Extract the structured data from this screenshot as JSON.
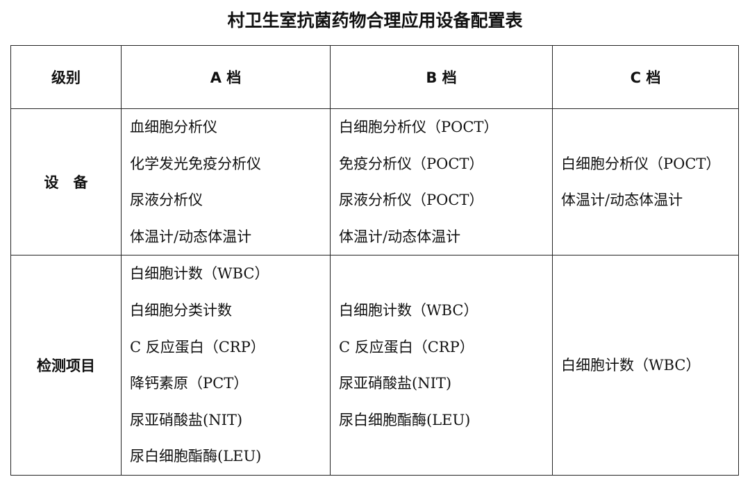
{
  "title": "村卫生室抗菌药物合理应用设备配置表",
  "headers": [
    "级别",
    "A 档",
    "B 档",
    "C 档"
  ],
  "rows": [
    {
      "label": "设　备",
      "a": [
        "血细胞分析仪",
        "化学发光免疫分析仪",
        "尿液分析仪",
        "体温计/动态体温计"
      ],
      "b": [
        "白细胞分析仪（POCT）",
        "免疫分析仪（POCT）",
        "尿液分析仪（POCT）",
        "体温计/动态体温计"
      ],
      "c": [
        "白细胞分析仪（POCT）",
        "体温计/动态体温计"
      ]
    },
    {
      "label": "检测项目",
      "a": [
        "白细胞计数（WBC）",
        "白细胞分类计数",
        "C 反应蛋白（CRP）",
        "降钙素原（PCT）",
        "尿亚硝酸盐(NIT)",
        "尿白细胞酯酶(LEU)"
      ],
      "b": [
        "白细胞计数（WBC）",
        "C 反应蛋白（CRP）",
        "尿亚硝酸盐(NIT)",
        "尿白细胞酯酶(LEU)"
      ],
      "c": [
        "白细胞计数（WBC）"
      ]
    }
  ]
}
